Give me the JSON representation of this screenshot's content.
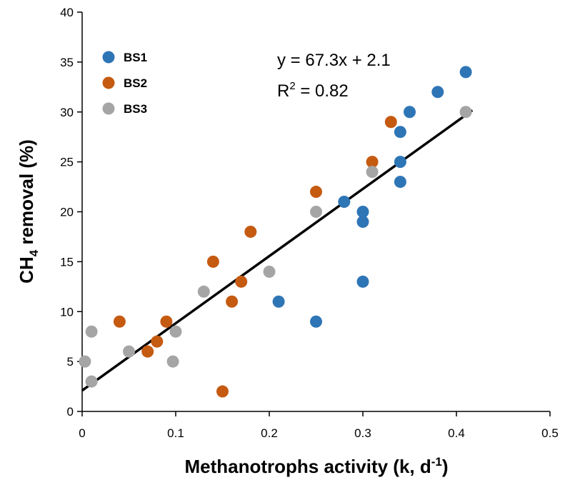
{
  "chart_data": {
    "type": "scatter",
    "xlabel": {
      "main": "Methanotrophs activity (k, d",
      "sup": "-1",
      "close": ")"
    },
    "ylabel": {
      "pre": "CH",
      "sub": "4",
      "post": " removal (%)"
    },
    "xlim": [
      0,
      0.5
    ],
    "ylim": [
      0,
      40
    ],
    "x_ticks": [
      "0",
      "0.1",
      "0.2",
      "0.3",
      "0.4",
      "0.5"
    ],
    "y_ticks": [
      "0",
      "5",
      "10",
      "15",
      "20",
      "25",
      "30",
      "35",
      "40"
    ],
    "grid": false,
    "legend_position": "top-left",
    "series": [
      {
        "name": "BS1",
        "color": "#2E75B6",
        "points": [
          [
            0.41,
            34
          ],
          [
            0.38,
            32
          ],
          [
            0.35,
            30
          ],
          [
            0.34,
            28
          ],
          [
            0.34,
            25
          ],
          [
            0.34,
            23
          ],
          [
            0.28,
            21
          ],
          [
            0.3,
            20
          ],
          [
            0.3,
            19
          ],
          [
            0.3,
            13
          ],
          [
            0.21,
            11
          ],
          [
            0.25,
            9
          ]
        ]
      },
      {
        "name": "BS2",
        "color": "#C55A11",
        "points": [
          [
            0.33,
            29
          ],
          [
            0.31,
            25
          ],
          [
            0.25,
            22
          ],
          [
            0.18,
            18
          ],
          [
            0.14,
            15
          ],
          [
            0.17,
            13
          ],
          [
            0.16,
            11
          ],
          [
            0.04,
            9
          ],
          [
            0.09,
            9
          ],
          [
            0.08,
            7
          ],
          [
            0.07,
            6
          ],
          [
            0.15,
            2
          ]
        ]
      },
      {
        "name": "BS3",
        "color": "#A5A5A5",
        "points": [
          [
            0.41,
            30
          ],
          [
            0.31,
            24
          ],
          [
            0.25,
            20
          ],
          [
            0.2,
            14
          ],
          [
            0.13,
            12
          ],
          [
            0.1,
            8
          ],
          [
            0.01,
            8
          ],
          [
            0.05,
            6
          ],
          [
            0.003,
            5
          ],
          [
            0.097,
            5
          ],
          [
            0.01,
            3
          ]
        ]
      }
    ],
    "trendline": {
      "slope": 67.3,
      "intercept": 2.1,
      "x_range": [
        0,
        0.417
      ],
      "color": "#000000"
    },
    "annotations": {
      "equation": "y = 67.3x + 2.1",
      "r2_base": "R",
      "r2_sup": "2",
      "r2_rest": " = 0.82"
    }
  }
}
